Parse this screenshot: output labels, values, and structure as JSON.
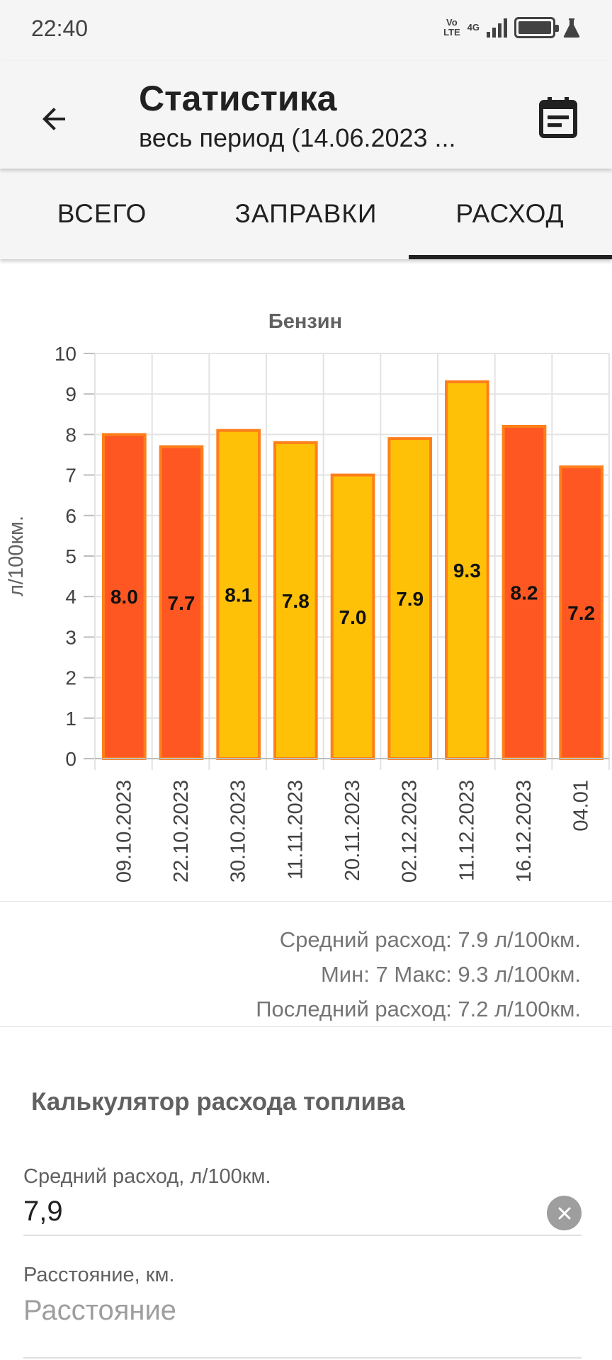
{
  "status_bar": {
    "time": "22:40",
    "volte_line1": "Vo",
    "volte_line2": "LTE",
    "network": "4G",
    "icons": [
      "volte-icon",
      "signal-icon",
      "battery-icon",
      "flask-icon"
    ]
  },
  "app_bar": {
    "back_icon": "arrow-back-icon",
    "title": "Статистика",
    "subtitle": "весь период (14.06.2023 ...",
    "calendar_icon": "calendar-icon"
  },
  "tabs": [
    {
      "label": "ВСЕГО",
      "selected": false
    },
    {
      "label": "ЗАПРАВКИ",
      "selected": false
    },
    {
      "label": "РАСХОД",
      "selected": true
    }
  ],
  "chart_data": {
    "type": "bar",
    "title": "Бензин",
    "ylabel": "л/100км.",
    "xlabel": "",
    "ylim": [
      0,
      10
    ],
    "yticks": [
      "0",
      "1",
      "2",
      "3",
      "4",
      "5",
      "6",
      "7",
      "8",
      "9",
      "10"
    ],
    "grid": true,
    "categories": [
      "09.10.2023",
      "22.10.2023",
      "30.10.2023",
      "11.11.2023",
      "20.11.2023",
      "02.12.2023",
      "11.12.2023",
      "16.12.2023",
      "04.01"
    ],
    "values": [
      8.0,
      7.7,
      8.1,
      7.8,
      7.0,
      7.9,
      9.3,
      8.2,
      7.2
    ],
    "value_labels": [
      "8.0",
      "7.7",
      "8.1",
      "7.8",
      "7.0",
      "7.9",
      "9.3",
      "8.2",
      "7.2"
    ],
    "bar_colors": [
      "#ff5722",
      "#ff5722",
      "#ffc107",
      "#ffc107",
      "#ffc107",
      "#ffc107",
      "#ffc107",
      "#ff5722",
      "#ff5722"
    ],
    "bar_border_color": "#ff7f1a"
  },
  "summary": {
    "average": "Средний расход: 7.9 л/100км.",
    "min_max": "Мин: 7 Макс: 9.3 л/100км.",
    "last": "Последний расход: 7.2 л/100км."
  },
  "calculator": {
    "title": "Калькулятор расхода топлива",
    "avg_label": "Средний расход, л/100км.",
    "avg_value": "7,9",
    "clear_icon": "clear-icon",
    "distance_label": "Расстояние, км.",
    "distance_placeholder": "Расстояние"
  },
  "colors": {
    "orange": "#ff5722",
    "amber": "#ffc107",
    "app_bar_bg": "#f5f5f5"
  }
}
